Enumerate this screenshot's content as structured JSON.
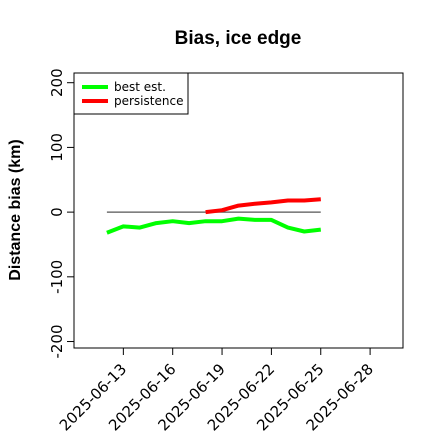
{
  "chart_data": {
    "type": "line",
    "title": "Bias, ice edge",
    "xlabel": "",
    "ylabel": "Distance bias (km)",
    "xlim": [
      "2025-06-10",
      "2025-06-30"
    ],
    "ylim": [
      -210,
      215
    ],
    "x_ticks": [
      "2025-06-13",
      "2025-06-16",
      "2025-06-19",
      "2025-06-22",
      "2025-06-25",
      "2025-06-28"
    ],
    "y_ticks": [
      -200,
      -100,
      0,
      100,
      200
    ],
    "legend_position": "top-left",
    "reference_line": {
      "y": 0,
      "x_range": [
        "2025-06-12",
        "2025-06-25"
      ],
      "color": "#555555"
    },
    "series": [
      {
        "name": "best est.",
        "color": "#00ff00",
        "x": [
          "2025-06-12",
          "2025-06-13",
          "2025-06-14",
          "2025-06-15",
          "2025-06-16",
          "2025-06-17",
          "2025-06-18",
          "2025-06-19",
          "2025-06-20",
          "2025-06-21",
          "2025-06-22",
          "2025-06-23",
          "2025-06-24",
          "2025-06-25"
        ],
        "y": [
          -32,
          -22,
          -24,
          -17,
          -14,
          -17,
          -14,
          -14,
          -10,
          -12,
          -12,
          -24,
          -30,
          -27
        ]
      },
      {
        "name": "persistence",
        "color": "#ff0000",
        "x": [
          "2025-06-18",
          "2025-06-19",
          "2025-06-20",
          "2025-06-21",
          "2025-06-22",
          "2025-06-23",
          "2025-06-24",
          "2025-06-25"
        ],
        "y": [
          0,
          3,
          10,
          13,
          15,
          18,
          18,
          20
        ]
      }
    ]
  }
}
